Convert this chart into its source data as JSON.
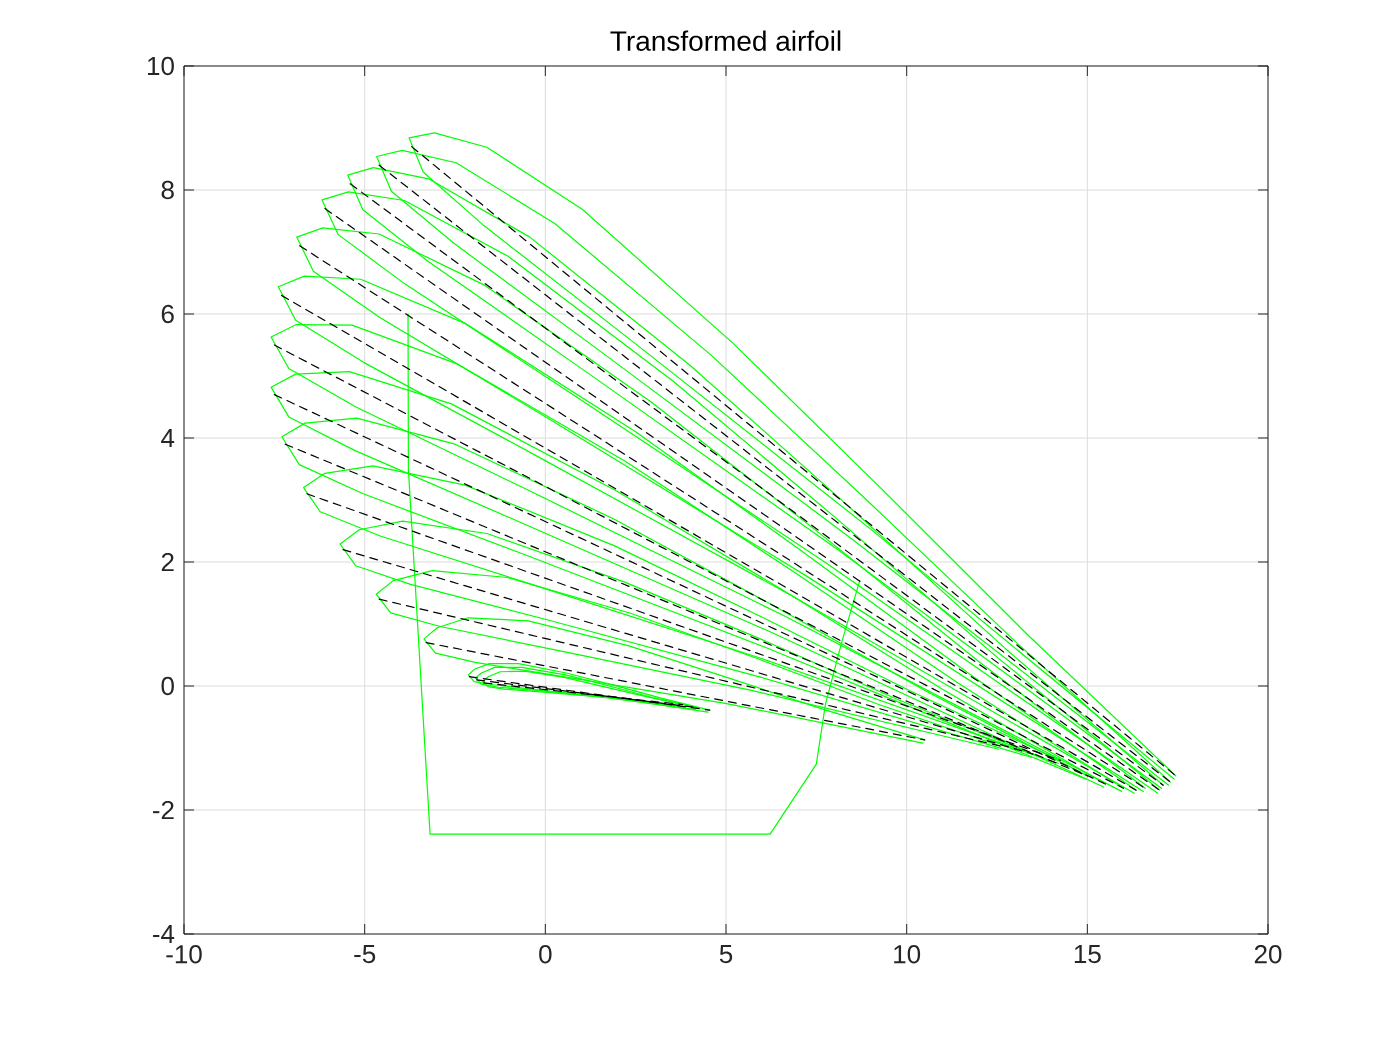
{
  "chart_data": {
    "type": "line",
    "title": "Transformed airfoil",
    "xlim": [
      -10,
      20
    ],
    "ylim": [
      -4,
      10
    ],
    "xticks": [
      -10,
      -5,
      0,
      5,
      10,
      15,
      20
    ],
    "yticks": [
      -4,
      -2,
      0,
      2,
      4,
      6,
      8,
      10
    ],
    "grid": true,
    "series": [
      {
        "color": "#00ff00",
        "line_style": "solid",
        "x": [
          17.45,
          13.34,
          9.27,
          5.19,
          1.02,
          -1.62,
          -3.07,
          -3.77,
          -3.38,
          -1.71,
          2.56,
          8.96,
          17.4
        ],
        "values": [
          -1.45,
          0.83,
          3.2,
          5.53,
          7.69,
          8.69,
          8.92,
          8.84,
          8.29,
          7.43,
          5.49,
          2.55,
          -1.5
        ]
      },
      {
        "color": "#00ff00",
        "line_style": "solid",
        "x": [
          17.3,
          13.04,
          8.82,
          4.58,
          0.26,
          -2.47,
          -3.96,
          -4.67,
          -4.26,
          -2.53,
          1.89,
          8.51,
          17.25
        ],
        "values": [
          -1.55,
          0.7,
          3.04,
          5.34,
          7.46,
          8.44,
          8.64,
          8.54,
          7.98,
          7.14,
          5.24,
          2.36,
          -1.6
        ]
      },
      {
        "color": "#00ff00",
        "line_style": "solid",
        "x": [
          17.1,
          12.72,
          8.37,
          4.01,
          -0.43,
          -3.23,
          -4.76,
          -5.47,
          -5.05,
          -3.27,
          1.27,
          8.07,
          17.05
        ],
        "values": [
          -1.6,
          0.61,
          2.91,
          5.17,
          7.24,
          8.18,
          8.36,
          8.24,
          7.68,
          6.86,
          5.01,
          2.21,
          -1.65
        ]
      },
      {
        "color": "#00ff00",
        "line_style": "solid",
        "x": [
          17.0,
          12.49,
          8.02,
          3.53,
          -1.03,
          -3.9,
          -5.45,
          -6.18,
          -5.73,
          -3.9,
          0.76,
          7.73,
          16.95
        ],
        "values": [
          -1.68,
          0.47,
          2.72,
          4.92,
          6.93,
          7.83,
          7.97,
          7.84,
          7.28,
          6.49,
          4.7,
          2.0,
          -1.73
        ]
      },
      {
        "color": "#00ff00",
        "line_style": "solid",
        "x": [
          16.6,
          12.03,
          7.49,
          2.93,
          -1.7,
          -4.6,
          -6.16,
          -6.88,
          -6.42,
          -4.57,
          0.15,
          7.21,
          16.55
        ],
        "values": [
          -1.65,
          0.38,
          2.51,
          4.58,
          6.47,
          7.29,
          7.39,
          7.24,
          6.69,
          5.94,
          4.29,
          1.78,
          -1.7
        ]
      },
      {
        "color": "#00ff00",
        "line_style": "solid",
        "x": [
          16.35,
          11.72,
          7.11,
          2.5,
          -2.19,
          -5.11,
          -6.67,
          -7.39,
          -6.91,
          -5.03,
          -0.27,
          6.87,
          16.3
        ],
        "values": [
          -1.68,
          0.2,
          2.17,
          4.1,
          5.84,
          6.56,
          6.61,
          6.44,
          5.9,
          5.22,
          3.72,
          1.44,
          -1.73
        ]
      },
      {
        "color": "#00ff00",
        "line_style": "solid",
        "x": [
          16.0,
          11.39,
          6.8,
          2.2,
          -2.46,
          -5.35,
          -6.89,
          -7.59,
          -7.1,
          -5.24,
          -0.51,
          6.58,
          15.95
        ],
        "values": [
          -1.65,
          0.06,
          1.87,
          3.63,
          5.2,
          5.82,
          5.83,
          5.63,
          5.12,
          4.5,
          3.17,
          1.14,
          -1.7
        ]
      },
      {
        "color": "#00ff00",
        "line_style": "solid",
        "x": [
          15.5,
          10.98,
          6.48,
          1.96,
          -2.6,
          -5.42,
          -6.91,
          -7.59,
          -7.1,
          -5.28,
          -0.65,
          6.28,
          15.45
        ],
        "values": [
          -1.58,
          -0.05,
          1.58,
          3.15,
          4.55,
          5.07,
          5.03,
          4.82,
          4.34,
          3.8,
          2.63,
          0.86,
          -1.63
        ]
      },
      {
        "color": "#00ff00",
        "line_style": "solid",
        "x": [
          15.0,
          10.62,
          6.27,
          1.91,
          -2.5,
          -5.22,
          -6.65,
          -7.29,
          -6.81,
          -5.04,
          -0.58,
          6.1,
          14.95
        ],
        "values": [
          -1.45,
          -0.11,
          1.31,
          2.69,
          3.9,
          4.32,
          4.24,
          4.02,
          3.57,
          3.1,
          2.12,
          0.62,
          -1.5
        ]
      },
      {
        "color": "#00ff00",
        "line_style": "solid",
        "x": [
          14.25,
          10.13,
          6.03,
          1.92,
          -2.22,
          -4.77,
          -6.1,
          -6.69,
          -6.23,
          -4.57,
          -0.38,
          5.9,
          14.2
        ],
        "values": [
          -1.2,
          -0.09,
          1.1,
          2.26,
          3.24,
          3.55,
          3.43,
          3.2,
          2.81,
          2.42,
          1.64,
          0.46,
          -1.25
        ]
      },
      {
        "color": "#00ff00",
        "line_style": "solid",
        "x": [
          13.5,
          9.72,
          5.95,
          2.18,
          -1.62,
          -3.95,
          -5.15,
          -5.68,
          -5.25,
          -3.73,
          0.1,
          5.85,
          13.45
        ],
        "values": [
          -1.1,
          -0.21,
          0.76,
          1.68,
          2.46,
          2.66,
          2.52,
          2.29,
          1.94,
          1.64,
          1.06,
          0.16,
          -1.15
        ]
      },
      {
        "color": "#00ff00",
        "line_style": "solid",
        "x": [
          12.6,
          9.19,
          5.79,
          2.38,
          -1.05,
          -3.13,
          -4.21,
          -4.68,
          -4.28,
          -2.91,
          0.54,
          5.71,
          12.55
        ],
        "values": [
          -0.97,
          -0.29,
          0.46,
          1.17,
          1.75,
          1.86,
          1.7,
          1.48,
          1.18,
          0.96,
          0.55,
          -0.07,
          -1.02
        ]
      },
      {
        "color": "#00ff00",
        "line_style": "solid",
        "x": [
          10.5,
          7.76,
          5.02,
          2.29,
          -0.47,
          -2.14,
          -2.99,
          -3.36,
          -3.04,
          -1.94,
          0.83,
          4.98,
          10.45
        ],
        "values": [
          -0.87,
          -0.39,
          0.14,
          0.65,
          1.05,
          1.1,
          0.94,
          0.76,
          0.53,
          0.38,
          0.12,
          -0.28,
          -0.92
        ]
      },
      {
        "color": "#00ff00",
        "line_style": "solid",
        "x": [
          4.55,
          3.23,
          1.91,
          0.58,
          -0.74,
          -1.55,
          -1.96,
          -2.13,
          -1.97,
          -1.44,
          -0.11,
          1.89,
          4.5
        ],
        "values": [
          -0.39,
          -0.2,
          0.01,
          0.21,
          0.36,
          0.36,
          0.27,
          0.18,
          0.07,
          0.02,
          -0.07,
          -0.19,
          -0.42
        ]
      },
      {
        "color": "#00ff00",
        "line_style": "solid",
        "x": [
          4.2,
          2.99,
          1.77,
          0.56,
          -0.66,
          -1.4,
          -1.77,
          -1.93,
          -1.78,
          -1.3,
          -0.07,
          1.76,
          4.15
        ],
        "values": [
          -0.35,
          -0.19,
          0.0,
          0.18,
          0.3,
          0.3,
          0.21,
          0.13,
          0.03,
          -0.02,
          -0.08,
          -0.19,
          -0.38
        ]
      },
      {
        "color": "#00ff00",
        "line_style": "solid",
        "x": [
          3.8,
          2.7,
          1.61,
          0.52,
          -0.58,
          -1.25,
          -1.58,
          -1.73,
          -1.59,
          -1.15,
          -0.05,
          1.6,
          3.75
        ],
        "values": [
          -0.3,
          -0.16,
          -0.01,
          0.14,
          0.24,
          0.23,
          0.15,
          0.07,
          -0.01,
          -0.05,
          -0.1,
          -0.18,
          -0.33
        ]
      },
      {
        "color": "#00ff00",
        "line_style": "solid",
        "x": [
          -3.8,
          -3.79,
          -3.19,
          6.22,
          7.5,
          7.75,
          8.2,
          8.7
        ],
        "values": [
          6.0,
          3.5,
          -2.39,
          -2.39,
          -1.26,
          -0.3,
          0.7,
          1.7
        ]
      },
      {
        "color": "#000000",
        "line_style": "dashed",
        "x": [
          -3.7,
          17.45
        ],
        "values": [
          8.7,
          -1.45
        ]
      },
      {
        "color": "#000000",
        "line_style": "dashed",
        "x": [
          -4.6,
          17.3
        ],
        "values": [
          8.4,
          -1.55
        ]
      },
      {
        "color": "#000000",
        "line_style": "dashed",
        "x": [
          -5.4,
          17.1
        ],
        "values": [
          8.1,
          -1.6
        ]
      },
      {
        "color": "#000000",
        "line_style": "dashed",
        "x": [
          -6.1,
          17.0
        ],
        "values": [
          7.7,
          -1.68
        ]
      },
      {
        "color": "#000000",
        "line_style": "dashed",
        "x": [
          -6.8,
          16.6
        ],
        "values": [
          7.1,
          -1.65
        ]
      },
      {
        "color": "#000000",
        "line_style": "dashed",
        "x": [
          -7.3,
          16.35
        ],
        "values": [
          6.3,
          -1.68
        ]
      },
      {
        "color": "#000000",
        "line_style": "dashed",
        "x": [
          -7.5,
          16.0
        ],
        "values": [
          5.5,
          -1.65
        ]
      },
      {
        "color": "#000000",
        "line_style": "dashed",
        "x": [
          -7.5,
          15.5
        ],
        "values": [
          4.7,
          -1.58
        ]
      },
      {
        "color": "#000000",
        "line_style": "dashed",
        "x": [
          -7.2,
          15.0
        ],
        "values": [
          3.9,
          -1.45
        ]
      },
      {
        "color": "#000000",
        "line_style": "dashed",
        "x": [
          -6.6,
          14.25
        ],
        "values": [
          3.1,
          -1.2
        ]
      },
      {
        "color": "#000000",
        "line_style": "dashed",
        "x": [
          -5.6,
          13.5
        ],
        "values": [
          2.2,
          -1.1
        ]
      },
      {
        "color": "#000000",
        "line_style": "dashed",
        "x": [
          -4.6,
          12.6
        ],
        "values": [
          1.4,
          -0.97
        ]
      },
      {
        "color": "#000000",
        "line_style": "dashed",
        "x": [
          -3.3,
          10.5
        ],
        "values": [
          0.7,
          -0.87
        ]
      },
      {
        "color": "#000000",
        "line_style": "dashed",
        "x": [
          -2.1,
          4.55
        ],
        "values": [
          0.15,
          -0.39
        ]
      },
      {
        "color": "#000000",
        "line_style": "dashed",
        "x": [
          -1.9,
          4.2
        ],
        "values": [
          0.1,
          -0.35
        ]
      },
      {
        "color": "#000000",
        "line_style": "dashed",
        "x": [
          -1.7,
          3.8
        ],
        "values": [
          0.05,
          -0.3
        ]
      }
    ]
  }
}
